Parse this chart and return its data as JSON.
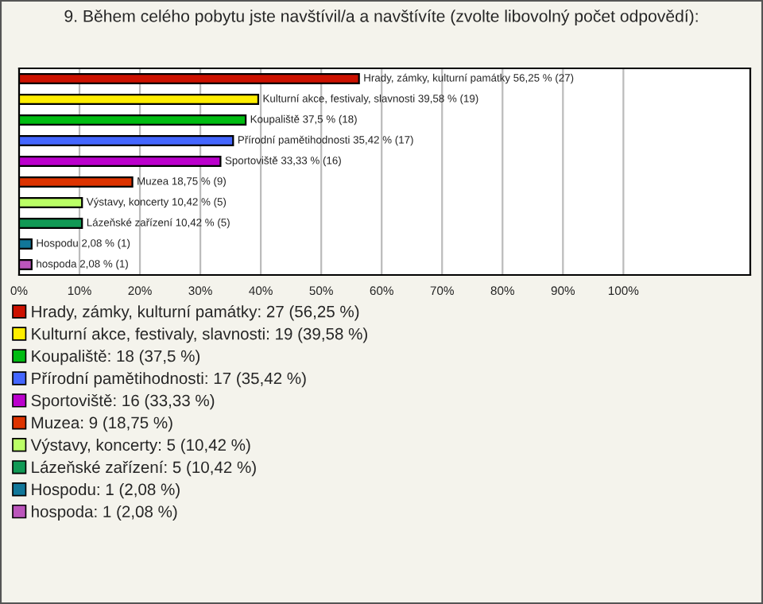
{
  "chart_data": {
    "type": "bar",
    "orientation": "horizontal",
    "title": "9. Během celého pobytu jste navštívil/a a navštívíte (zvolte libovolný počet odpovědí):",
    "categories": [
      null,
      null,
      null,
      null,
      null,
      null,
      null,
      null,
      null,
      null
    ],
    "series": [
      {
        "name": "Hrady, zámky, kulturní památky: 27 (56,25 %)",
        "color": "#cc1100",
        "values": [
          56.25,
          null,
          null,
          null,
          null,
          null,
          null,
          null,
          null,
          null
        ],
        "value_labels": [
          "Hrady, zámky, kulturní památky 56,25 % (27)",
          null,
          null,
          null,
          null,
          null,
          null,
          null,
          null,
          null
        ]
      },
      {
        "name": "Kulturní akce, festivaly, slavnosti: 19 (39,58 %)",
        "color": "#ffee00",
        "values": [
          null,
          39.58,
          null,
          null,
          null,
          null,
          null,
          null,
          null,
          null
        ],
        "value_labels": [
          null,
          "Kulturní akce, festivaly, slavnosti 39,58 % (19)",
          null,
          null,
          null,
          null,
          null,
          null,
          null,
          null
        ]
      },
      {
        "name": "Koupaliště: 18 (37,5 %)",
        "color": "#00bb11",
        "values": [
          null,
          null,
          37.5,
          null,
          null,
          null,
          null,
          null,
          null,
          null
        ],
        "value_labels": [
          null,
          null,
          "Koupaliště 37,5 % (18)",
          null,
          null,
          null,
          null,
          null,
          null,
          null
        ]
      },
      {
        "name": "Přírodní pamětihodnosti: 17 (35,42 %)",
        "color": "#4466ff",
        "values": [
          null,
          null,
          null,
          35.42,
          null,
          null,
          null,
          null,
          null,
          null
        ],
        "value_labels": [
          null,
          null,
          null,
          "Přírodní pamětihodnosti 35,42 % (17)",
          null,
          null,
          null,
          null,
          null,
          null
        ]
      },
      {
        "name": "Sportoviště: 16 (33,33 %)",
        "color": "#bb00cc",
        "values": [
          null,
          null,
          null,
          null,
          33.33,
          null,
          null,
          null,
          null,
          null
        ],
        "value_labels": [
          null,
          null,
          null,
          null,
          "Sportoviště 33,33 % (16)",
          null,
          null,
          null,
          null,
          null
        ]
      },
      {
        "name": "Muzea: 9 (18,75 %)",
        "color": "#dd3300",
        "values": [
          null,
          null,
          null,
          null,
          null,
          18.75,
          null,
          null,
          null,
          null
        ],
        "value_labels": [
          null,
          null,
          null,
          null,
          null,
          "Muzea 18,75 % (9)",
          null,
          null,
          null,
          null
        ]
      },
      {
        "name": "Výstavy, koncerty: 5 (10,42 %)",
        "color": "#bbff66",
        "values": [
          null,
          null,
          null,
          null,
          null,
          null,
          10.42,
          null,
          null,
          null
        ],
        "value_labels": [
          null,
          null,
          null,
          null,
          null,
          null,
          "Výstavy, koncerty 10,42 % (5)",
          null,
          null,
          null
        ]
      },
      {
        "name": "Lázeňské zařízení: 5 (10,42 %)",
        "color": "#119955",
        "values": [
          null,
          null,
          null,
          null,
          null,
          null,
          null,
          10.42,
          null,
          null
        ],
        "value_labels": [
          null,
          null,
          null,
          null,
          null,
          null,
          null,
          "Lázeňské zařízení 10,42 % (5)",
          null,
          null
        ]
      },
      {
        "name": "Hospodu: 1 (2,08 %)",
        "color": "#117799",
        "values": [
          null,
          null,
          null,
          null,
          null,
          null,
          null,
          null,
          2.08,
          null
        ],
        "value_labels": [
          null,
          null,
          null,
          null,
          null,
          null,
          null,
          null,
          "Hospodu 2,08 % (1)",
          null
        ]
      },
      {
        "name": "hospoda: 1 (2,08 %)",
        "color": "#bb55bb",
        "values": [
          null,
          null,
          null,
          null,
          null,
          null,
          null,
          null,
          null,
          2.08
        ],
        "value_labels": [
          null,
          null,
          null,
          null,
          null,
          null,
          null,
          null,
          null,
          "hospoda 2,08 % (1)"
        ]
      }
    ],
    "xlim": [
      0,
      121
    ],
    "xticks": [
      {
        "value": 0,
        "label": "0%"
      },
      {
        "value": 10,
        "label": "10%"
      },
      {
        "value": 20,
        "label": "20%"
      },
      {
        "value": 30,
        "label": "30%"
      },
      {
        "value": 40,
        "label": "40%"
      },
      {
        "value": 50,
        "label": "50%"
      },
      {
        "value": 60,
        "label": "60%"
      },
      {
        "value": 70,
        "label": "70%"
      },
      {
        "value": 80,
        "label": "80%"
      },
      {
        "value": 90,
        "label": "90%"
      },
      {
        "value": 100,
        "label": "100%"
      }
    ],
    "grid": "x",
    "legend": "bottom",
    "tick_labels": "x"
  }
}
